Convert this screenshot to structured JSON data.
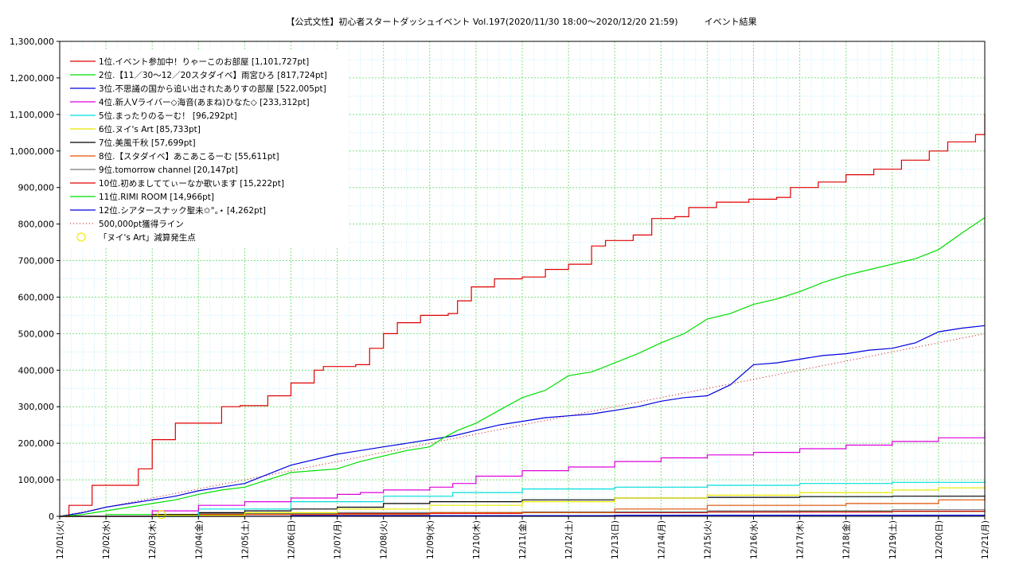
{
  "chart_data": {
    "type": "line",
    "title": "【公式文性】初心者スタートダッシュイベント Vol.197(2020/11/30 18:00〜2020/12/20 21:59)　　　イベント結果",
    "xlabel": "",
    "ylabel": "",
    "ylim": [
      0,
      1300000
    ],
    "xlim": [
      "12/01(火)",
      "12/21(月)"
    ],
    "grid": true,
    "legend_position": "top-left",
    "y_ticks": [
      "0",
      "100,000",
      "200,000",
      "300,000",
      "400,000",
      "500,000",
      "600,000",
      "700,000",
      "800,000",
      "900,000",
      "1,000,000",
      "1,100,000",
      "1,200,000",
      "1,300,000"
    ],
    "x_ticks": [
      "12/01(火)",
      "12/02(水)",
      "12/03(木)",
      "12/04(金)",
      "12/05(土)",
      "12/06(日)",
      "12/07(月)",
      "12/08(火)",
      "12/09(水)",
      "12/10(木)",
      "12/11(金)",
      "12/12(土)",
      "12/13(日)",
      "12/14(月)",
      "12/15(火)",
      "12/16(水)",
      "12/17(木)",
      "12/18(金)",
      "12/19(土)",
      "12/20(日)",
      "12/21(月)"
    ],
    "series": [
      {
        "name": "1位.イベント参加中！りゃーこのお部屋 [1,101,727pt]",
        "color": "#e00000",
        "style": "step",
        "points": [
          [
            0,
            0
          ],
          [
            0.2,
            30000
          ],
          [
            0.7,
            85000
          ],
          [
            1.0,
            85000
          ],
          [
            1.7,
            130000
          ],
          [
            2.0,
            210000
          ],
          [
            2.5,
            255000
          ],
          [
            3.5,
            300000
          ],
          [
            3.9,
            303000
          ],
          [
            4.5,
            330000
          ],
          [
            5.0,
            365000
          ],
          [
            5.5,
            400000
          ],
          [
            5.7,
            410000
          ],
          [
            6.4,
            415000
          ],
          [
            6.7,
            460000
          ],
          [
            7.0,
            500000
          ],
          [
            7.3,
            530000
          ],
          [
            7.8,
            550000
          ],
          [
            8.4,
            555000
          ],
          [
            8.6,
            590000
          ],
          [
            8.9,
            628000
          ],
          [
            9.4,
            650000
          ],
          [
            10.0,
            655000
          ],
          [
            10.5,
            676000
          ],
          [
            11.0,
            690000
          ],
          [
            11.5,
            740000
          ],
          [
            11.8,
            755000
          ],
          [
            12.4,
            770000
          ],
          [
            12.8,
            815000
          ],
          [
            13.3,
            820000
          ],
          [
            13.6,
            845000
          ],
          [
            14.2,
            860000
          ],
          [
            14.9,
            868000
          ],
          [
            15.5,
            873000
          ],
          [
            15.8,
            900000
          ],
          [
            16.4,
            915000
          ],
          [
            17.0,
            935000
          ],
          [
            17.6,
            950000
          ],
          [
            18.2,
            975000
          ],
          [
            18.8,
            1000000
          ],
          [
            19.2,
            1025000
          ],
          [
            19.8,
            1045000
          ],
          [
            20.0,
            1101727
          ]
        ]
      },
      {
        "name": "2位.【11／30〜12／20スタダイベ】雨宮ひろ [817,724pt]",
        "color": "#00dd00",
        "style": "smooth",
        "points": [
          [
            0,
            0
          ],
          [
            0.5,
            5000
          ],
          [
            1.0,
            15000
          ],
          [
            1.5,
            25000
          ],
          [
            2.0,
            35000
          ],
          [
            2.5,
            45000
          ],
          [
            3.0,
            60000
          ],
          [
            3.5,
            72000
          ],
          [
            4.0,
            80000
          ],
          [
            4.5,
            100000
          ],
          [
            5.0,
            120000
          ],
          [
            5.5,
            125000
          ],
          [
            6.0,
            130000
          ],
          [
            6.5,
            150000
          ],
          [
            7.0,
            165000
          ],
          [
            7.5,
            180000
          ],
          [
            8.0,
            190000
          ],
          [
            8.3,
            215000
          ],
          [
            8.6,
            235000
          ],
          [
            9.0,
            255000
          ],
          [
            9.5,
            290000
          ],
          [
            10.0,
            325000
          ],
          [
            10.5,
            345000
          ],
          [
            11.0,
            385000
          ],
          [
            11.5,
            395000
          ],
          [
            12.0,
            420000
          ],
          [
            12.5,
            445000
          ],
          [
            13.0,
            475000
          ],
          [
            13.5,
            500000
          ],
          [
            14.0,
            540000
          ],
          [
            14.5,
            555000
          ],
          [
            15.0,
            580000
          ],
          [
            15.5,
            595000
          ],
          [
            16.0,
            615000
          ],
          [
            16.5,
            640000
          ],
          [
            17.0,
            660000
          ],
          [
            17.5,
            675000
          ],
          [
            18.0,
            690000
          ],
          [
            18.5,
            705000
          ],
          [
            19.0,
            730000
          ],
          [
            19.5,
            775000
          ],
          [
            20.0,
            817724
          ]
        ]
      },
      {
        "name": "3位.不思議の国から追い出されたありすの部屋 [522,005pt]",
        "color": "#0000dd",
        "style": "smooth",
        "points": [
          [
            0,
            0
          ],
          [
            0.5,
            10000
          ],
          [
            1.0,
            25000
          ],
          [
            1.5,
            35000
          ],
          [
            2.0,
            45000
          ],
          [
            2.5,
            55000
          ],
          [
            3.0,
            70000
          ],
          [
            3.5,
            80000
          ],
          [
            4.0,
            90000
          ],
          [
            4.5,
            115000
          ],
          [
            5.0,
            140000
          ],
          [
            5.5,
            155000
          ],
          [
            6.0,
            170000
          ],
          [
            6.5,
            180000
          ],
          [
            7.0,
            190000
          ],
          [
            7.5,
            200000
          ],
          [
            8.0,
            210000
          ],
          [
            8.5,
            220000
          ],
          [
            9.0,
            235000
          ],
          [
            9.5,
            250000
          ],
          [
            10.0,
            260000
          ],
          [
            10.5,
            270000
          ],
          [
            11.0,
            275000
          ],
          [
            11.5,
            280000
          ],
          [
            12.0,
            290000
          ],
          [
            12.5,
            300000
          ],
          [
            13.0,
            315000
          ],
          [
            13.5,
            325000
          ],
          [
            14.0,
            330000
          ],
          [
            14.5,
            360000
          ],
          [
            15.0,
            415000
          ],
          [
            15.5,
            420000
          ],
          [
            16.0,
            430000
          ],
          [
            16.5,
            440000
          ],
          [
            17.0,
            445000
          ],
          [
            17.5,
            455000
          ],
          [
            18.0,
            460000
          ],
          [
            18.5,
            475000
          ],
          [
            19.0,
            505000
          ],
          [
            19.5,
            515000
          ],
          [
            20.0,
            522005
          ]
        ]
      },
      {
        "name": "4位.新人Vライバー◇海音(あまね)ひなた◇ [233,312pt]",
        "color": "#dd00dd",
        "style": "step",
        "points": [
          [
            0,
            0
          ],
          [
            2.0,
            15000
          ],
          [
            3.0,
            30000
          ],
          [
            4.0,
            40000
          ],
          [
            5.0,
            50000
          ],
          [
            6.0,
            60000
          ],
          [
            6.5,
            65000
          ],
          [
            7.0,
            72000
          ],
          [
            8.0,
            80000
          ],
          [
            8.5,
            90000
          ],
          [
            9.0,
            110000
          ],
          [
            10.0,
            125000
          ],
          [
            11.0,
            135000
          ],
          [
            12.0,
            150000
          ],
          [
            13.0,
            160000
          ],
          [
            14.0,
            168000
          ],
          [
            15.0,
            175000
          ],
          [
            16.0,
            185000
          ],
          [
            17.0,
            195000
          ],
          [
            18.0,
            205000
          ],
          [
            19.0,
            215000
          ],
          [
            20.0,
            233312
          ]
        ]
      },
      {
        "name": "5位.まったりのるーむ！ [96,292pt]",
        "color": "#00dddd",
        "style": "step",
        "points": [
          [
            0,
            0
          ],
          [
            3.0,
            20000
          ],
          [
            5.0,
            40000
          ],
          [
            7.0,
            55000
          ],
          [
            8.5,
            65000
          ],
          [
            10.0,
            75000
          ],
          [
            12.0,
            80000
          ],
          [
            14.0,
            85000
          ],
          [
            16.0,
            90000
          ],
          [
            18.0,
            93000
          ],
          [
            20.0,
            96292
          ]
        ]
      },
      {
        "name": "6位.ヌイ's Art [85,733pt]",
        "color": "#e8e800",
        "style": "step",
        "points": [
          [
            0,
            0
          ],
          [
            2.0,
            3000
          ],
          [
            4.0,
            10000
          ],
          [
            6.0,
            20000
          ],
          [
            8.0,
            30000
          ],
          [
            10.0,
            40000
          ],
          [
            12.0,
            50000
          ],
          [
            14.0,
            58000
          ],
          [
            16.0,
            65000
          ],
          [
            18.0,
            72000
          ],
          [
            19.0,
            78000
          ],
          [
            20.0,
            85733
          ]
        ]
      },
      {
        "name": "7位.美風千秋 [57,699pt]",
        "color": "#000000",
        "style": "step",
        "points": [
          [
            0,
            0
          ],
          [
            2.0,
            5000
          ],
          [
            3.0,
            10000
          ],
          [
            4.0,
            15000
          ],
          [
            5.0,
            20000
          ],
          [
            6.0,
            25000
          ],
          [
            7.0,
            35000
          ],
          [
            8.0,
            40000
          ],
          [
            10.0,
            45000
          ],
          [
            12.0,
            50000
          ],
          [
            14.0,
            52000
          ],
          [
            16.0,
            54000
          ],
          [
            18.0,
            55000
          ],
          [
            20.0,
            57699
          ]
        ]
      },
      {
        "name": "8位.【スタダイベ】あこあこるーむ [55,611pt]",
        "color": "#e05000",
        "style": "step",
        "points": [
          [
            0,
            0
          ],
          [
            4.0,
            5000
          ],
          [
            8.0,
            10000
          ],
          [
            12.0,
            20000
          ],
          [
            14.0,
            30000
          ],
          [
            17.0,
            35000
          ],
          [
            19.0,
            45000
          ],
          [
            20.0,
            55611
          ]
        ]
      },
      {
        "name": "9位.tomorrow channel [20,147pt]",
        "color": "#777777",
        "style": "step",
        "points": [
          [
            0,
            0
          ],
          [
            3.0,
            8000
          ],
          [
            6.0,
            10000
          ],
          [
            10.0,
            12000
          ],
          [
            14.0,
            15000
          ],
          [
            18.0,
            18000
          ],
          [
            20.0,
            20147
          ]
        ]
      },
      {
        "name": "10位.初めましててぃーなか歌います [15,222pt]",
        "color": "#e00000",
        "style": "step",
        "points": [
          [
            0,
            0
          ],
          [
            2.0,
            5000
          ],
          [
            6.0,
            8000
          ],
          [
            10.0,
            10000
          ],
          [
            14.0,
            12000
          ],
          [
            18.0,
            14000
          ],
          [
            20.0,
            15222
          ]
        ]
      },
      {
        "name": "11位.RIMI ROOM [14,966pt]",
        "color": "#00dd00",
        "style": "step",
        "points": [
          [
            0,
            0
          ],
          [
            1.0,
            5000
          ],
          [
            4.0,
            8000
          ],
          [
            8.0,
            10000
          ],
          [
            12.0,
            12000
          ],
          [
            16.0,
            13500
          ],
          [
            20.0,
            14966
          ]
        ]
      },
      {
        "name": "12位.シアタースナック聖未✩°｡⋆ [4,262pt]",
        "color": "#0000dd",
        "style": "step",
        "points": [
          [
            0,
            0
          ],
          [
            5.0,
            2000
          ],
          [
            12.0,
            3000
          ],
          [
            20.0,
            4262
          ]
        ]
      }
    ],
    "reference_lines": [
      {
        "name": "500,000pt獲得ライン",
        "color": "#cc0000",
        "style": "dotted",
        "points": [
          [
            0,
            0
          ],
          [
            20.0,
            500000
          ]
        ]
      }
    ],
    "markers": [
      {
        "name": "「ヌイ's Art」減算発生点",
        "color": "#eeee00",
        "shape": "circle",
        "points": [
          [
            2.2,
            5000
          ]
        ]
      }
    ]
  }
}
